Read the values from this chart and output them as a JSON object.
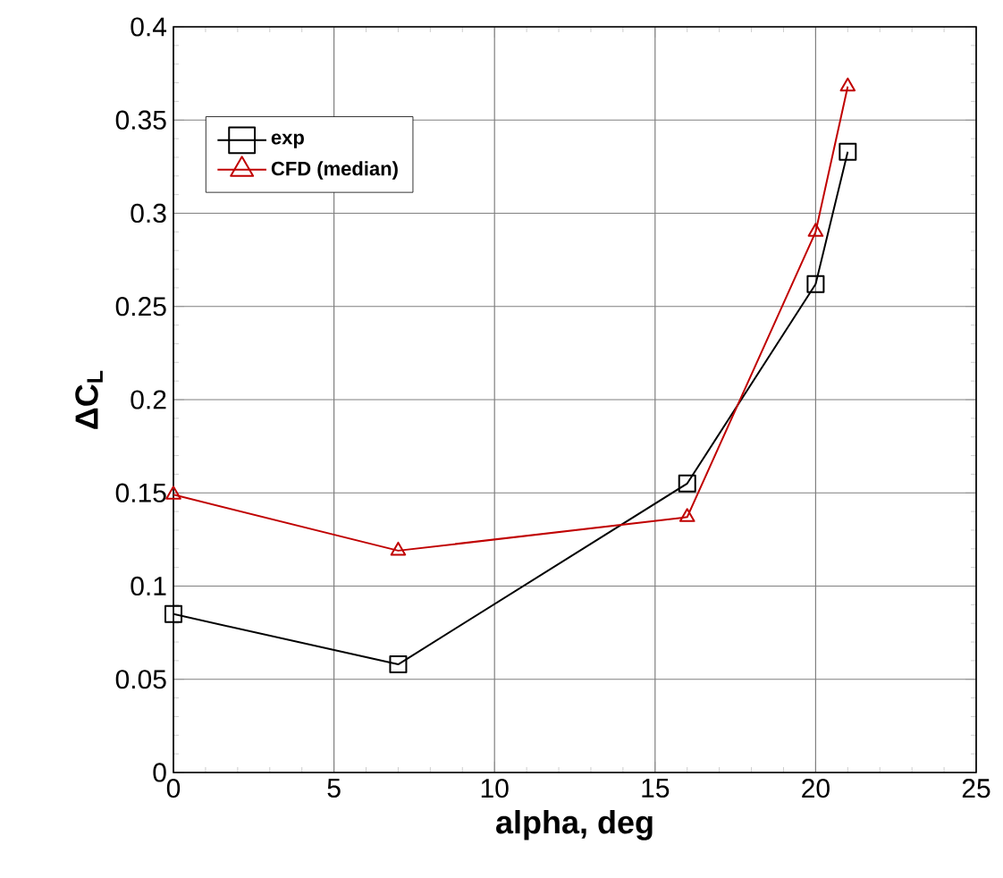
{
  "chart_data": {
    "type": "line",
    "xlabel": "alpha, deg",
    "ylabel": "ΔC$_{L}$",
    "xlim": [
      0,
      25
    ],
    "xticks": [
      0,
      5,
      10,
      15,
      20,
      25
    ],
    "ylim": [
      0,
      0.4
    ],
    "yticks": [
      0,
      0.05,
      0.1,
      0.15,
      0.2,
      0.25,
      0.3,
      0.35,
      0.4
    ],
    "grid": true,
    "legend": "top left",
    "x": [
      0,
      7,
      16,
      20,
      21
    ],
    "series": [
      {
        "name": "exp",
        "color": "#000000",
        "marker": "square",
        "values": [
          0.085,
          0.058,
          0.155,
          0.262,
          0.333
        ]
      },
      {
        "name": "CFD (median)",
        "color": "#c00000",
        "marker": "triangle",
        "values": [
          0.149,
          0.119,
          0.137,
          0.29,
          0.368
        ]
      }
    ]
  }
}
